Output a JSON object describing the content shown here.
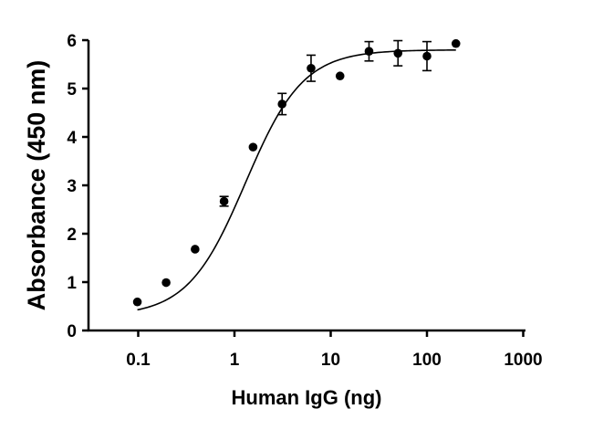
{
  "chart_data": {
    "type": "scatter",
    "title": "",
    "xlabel": "Human IgG (ng)",
    "ylabel": "Absorbance (450 nm)",
    "xscale": "log",
    "xlim": [
      0.03,
      1000
    ],
    "ylim": [
      0,
      6
    ],
    "xticks": [
      0.1,
      1,
      10,
      100,
      1000
    ],
    "xtick_labels": [
      "0.1",
      "1",
      "10",
      "100",
      "1000"
    ],
    "yticks": [
      0,
      1,
      2,
      3,
      4,
      5,
      6
    ],
    "ytick_labels": [
      "0",
      "1",
      "2",
      "3",
      "4",
      "5",
      "6"
    ],
    "grid": false,
    "legend": "none",
    "fit_curve": {
      "model": "4PL",
      "bottom": 0.3,
      "top": 5.8,
      "ec50": 1.3,
      "hill": 1.45,
      "color": "#000000"
    },
    "series": [
      {
        "x": [
          0.098,
          0.195,
          0.39,
          0.78,
          1.56,
          3.125,
          6.25,
          12.5,
          25,
          50,
          100,
          200
        ],
        "y": [
          0.59,
          0.99,
          1.68,
          2.67,
          3.79,
          4.68,
          5.42,
          5.26,
          5.77,
          5.73,
          5.67,
          5.93
        ],
        "err": [
          0.03,
          0.03,
          0.04,
          0.1,
          0.05,
          0.22,
          0.27,
          0.03,
          0.2,
          0.26,
          0.3,
          0.04
        ],
        "color": "#000000"
      }
    ]
  }
}
